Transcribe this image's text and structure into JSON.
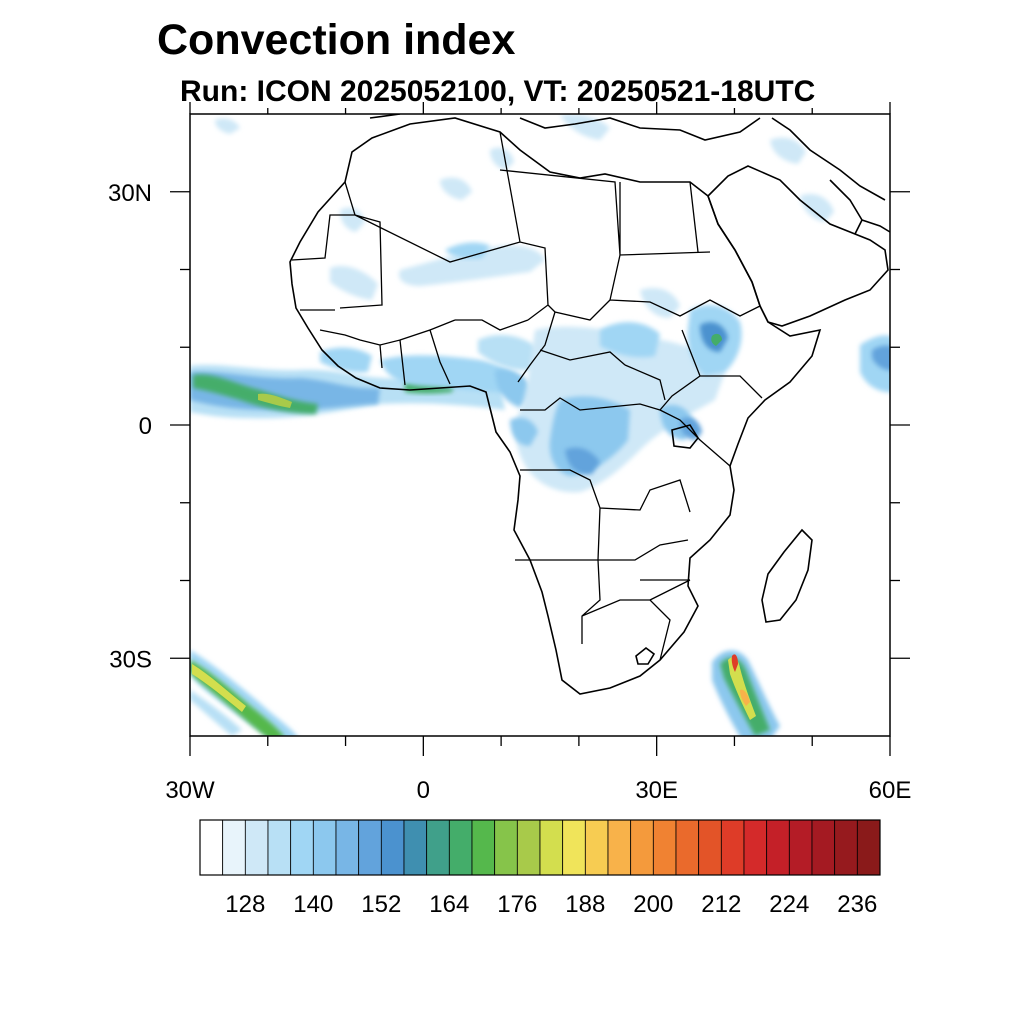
{
  "title": "Convection index",
  "subtitle": "Run: ICON 2025052100,  VT: 20250521-18UTC",
  "map": {
    "region": "Africa",
    "projection": "cylindrical equidistant",
    "lon_range": [
      -30,
      60
    ],
    "lat_range": [
      -40,
      40
    ],
    "lon_ticks": [
      {
        "value": -30,
        "label": "30W"
      },
      {
        "value": 0,
        "label": "0"
      },
      {
        "value": 30,
        "label": "30E"
      },
      {
        "value": 60,
        "label": "60E"
      }
    ],
    "lat_ticks": [
      {
        "value": 30,
        "label": "30N"
      },
      {
        "value": 0,
        "label": "0"
      },
      {
        "value": -30,
        "label": "30S"
      }
    ],
    "minor_lon_ticks": [
      -20,
      -10,
      10,
      20,
      40,
      50
    ],
    "minor_lat_ticks": [
      -20,
      -10,
      10,
      20
    ]
  },
  "colorbar": {
    "labels": [
      "128",
      "140",
      "152",
      "164",
      "176",
      "188",
      "200",
      "212",
      "224",
      "236"
    ],
    "colors": [
      "#ffffff",
      "#e8f4fb",
      "#cfe8f7",
      "#b8e0f5",
      "#a0d6f4",
      "#8cc8ee",
      "#78b6e6",
      "#62a3dc",
      "#4b92cf",
      "#3f8fb0",
      "#40a08a",
      "#44ad6a",
      "#55b84c",
      "#86c44a",
      "#a8ca4a",
      "#d3de4e",
      "#f0e45a",
      "#f7cc52",
      "#f8b24a",
      "#f49a3c",
      "#f08232",
      "#ea6a2c",
      "#e35428",
      "#de3c28",
      "#d42a2a",
      "#c42028",
      "#b41c26",
      "#a41a22",
      "#961a1e",
      "#8a1a1a"
    ]
  }
}
